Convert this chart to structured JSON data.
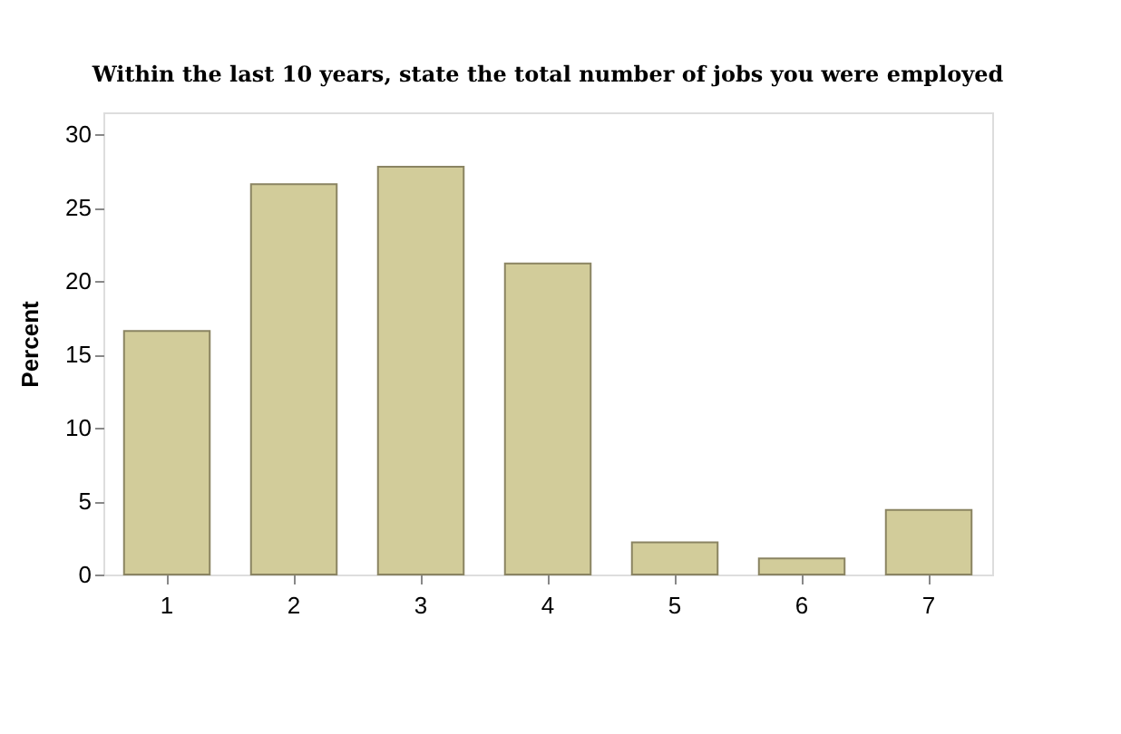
{
  "chart_data": {
    "type": "bar",
    "title": "Within the last 10 years, state the total number of jobs you were employed",
    "ylabel": "Percent",
    "categories": [
      "1",
      "2",
      "3",
      "4",
      "5",
      "6",
      "7"
    ],
    "values": [
      16.6,
      26.6,
      27.8,
      21.2,
      2.2,
      1.1,
      4.4
    ],
    "color": "#d2cc9a",
    "ylim": [
      0,
      31.5
    ],
    "yticks": [
      0,
      5,
      10,
      15,
      20,
      25,
      30
    ],
    "grid": false
  }
}
